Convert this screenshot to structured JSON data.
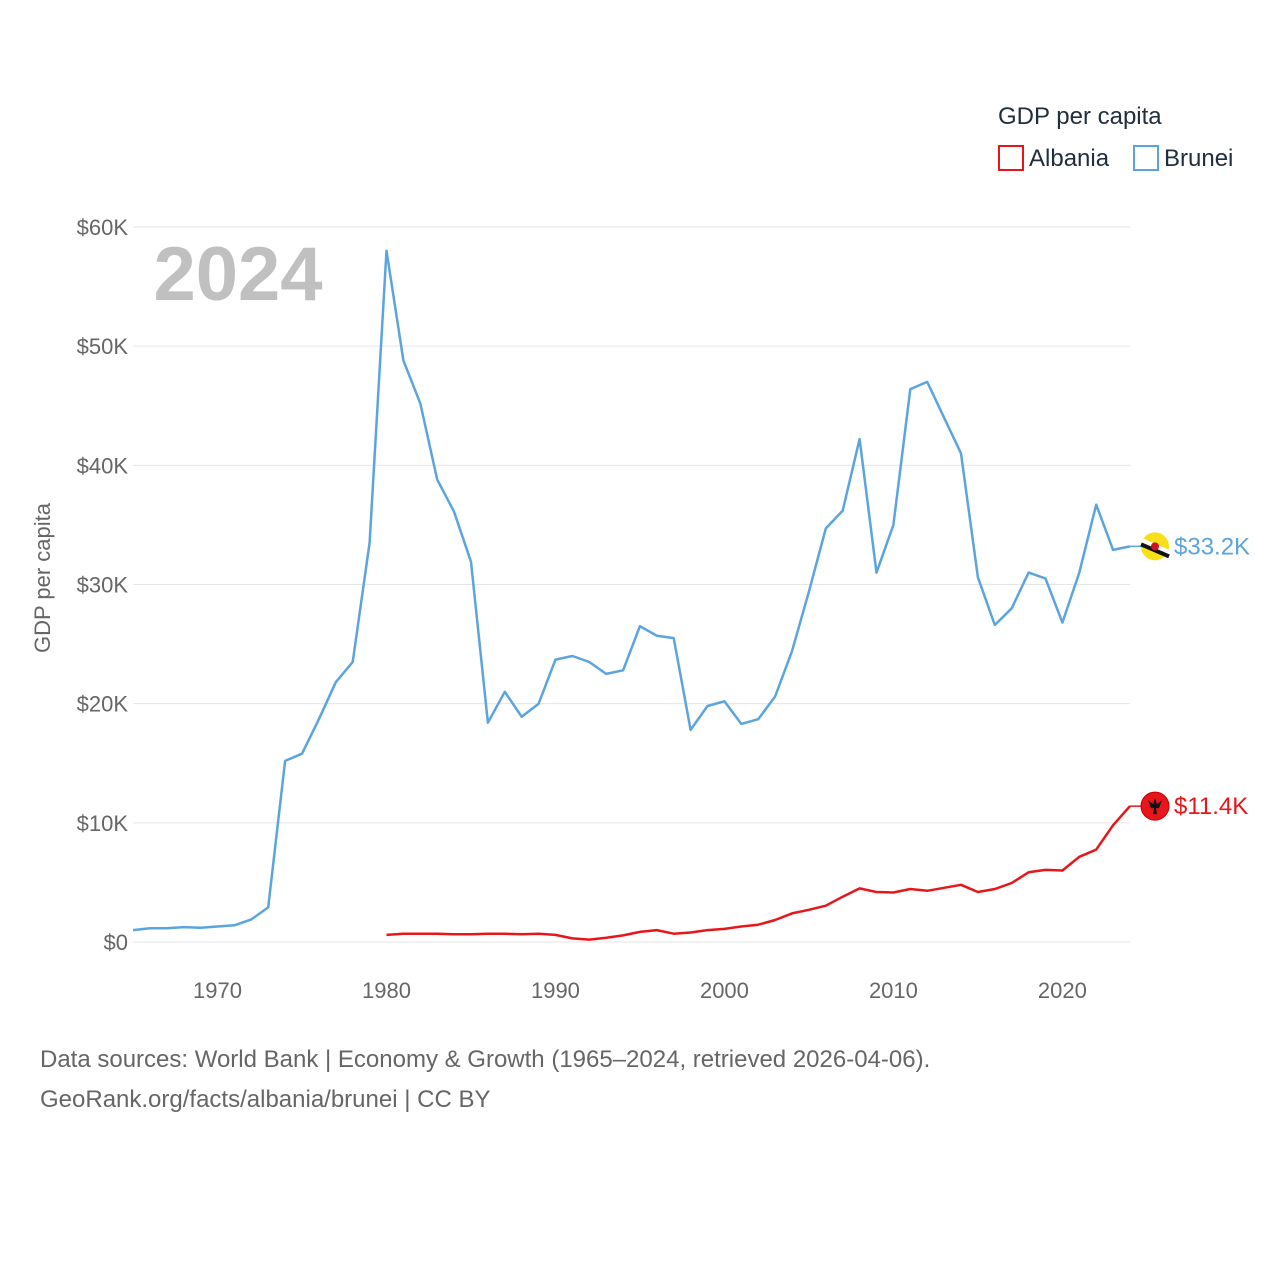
{
  "legend": {
    "title": "GDP per capita"
  },
  "year_display": "2024",
  "source": {
    "line1": "Data sources: World Bank | Economy & Growth (1965–2024, retrieved 2026-04-06).",
    "line2": "GeoRank.org/facts/albania/brunei | CC BY"
  },
  "chart_data": {
    "type": "line",
    "title": "GDP per capita",
    "ylabel": "GDP per capita",
    "xlabel": "",
    "xlim": [
      1965,
      2024
    ],
    "ylim": [
      0,
      60000
    ],
    "grid": true,
    "legend_position": "top-right",
    "x_ticks": [
      1970,
      1980,
      1990,
      2000,
      2010,
      2020
    ],
    "x_tick_labels": [
      "1970",
      "1980",
      "1990",
      "2000",
      "2010",
      "2020"
    ],
    "y_ticks": [
      0,
      10000,
      20000,
      30000,
      40000,
      50000,
      60000
    ],
    "y_tick_labels": [
      "$0",
      "$10K",
      "$20K",
      "$30K",
      "$40K",
      "$50K",
      "$60K"
    ],
    "series": [
      {
        "name": "Albania",
        "color": "#e8161b",
        "end_label": "$11.4K",
        "flag_icon": "albania-flag-icon",
        "x": [
          1980,
          1981,
          1982,
          1983,
          1984,
          1985,
          1986,
          1987,
          1988,
          1989,
          1990,
          1991,
          1992,
          1993,
          1994,
          1995,
          1996,
          1997,
          1998,
          1999,
          2000,
          2001,
          2002,
          2003,
          2004,
          2005,
          2006,
          2007,
          2008,
          2009,
          2010,
          2011,
          2012,
          2013,
          2014,
          2015,
          2016,
          2017,
          2018,
          2019,
          2020,
          2021,
          2022,
          2023,
          2024
        ],
        "values": [
          600,
          700,
          700,
          700,
          650,
          650,
          700,
          700,
          650,
          700,
          600,
          300,
          200,
          350,
          550,
          850,
          1000,
          700,
          800,
          1000,
          1100,
          1300,
          1450,
          1850,
          2400,
          2700,
          3050,
          3800,
          4500,
          4200,
          4150,
          4450,
          4300,
          4550,
          4800,
          4200,
          4450,
          4950,
          5850,
          6050,
          6000,
          7150,
          7750,
          9800,
          11400
        ]
      },
      {
        "name": "Brunei",
        "color": "#5ba4e0",
        "end_label": "$33.2K",
        "flag_icon": "brunei-flag-icon",
        "x": [
          1965,
          1966,
          1967,
          1968,
          1969,
          1970,
          1971,
          1972,
          1973,
          1974,
          1975,
          1976,
          1977,
          1978,
          1979,
          1980,
          1981,
          1982,
          1983,
          1984,
          1985,
          1986,
          1987,
          1988,
          1989,
          1990,
          1991,
          1992,
          1993,
          1994,
          1995,
          1996,
          1997,
          1998,
          1999,
          2000,
          2001,
          2002,
          2003,
          2004,
          2005,
          2006,
          2007,
          2008,
          2009,
          2010,
          2011,
          2012,
          2013,
          2014,
          2015,
          2016,
          2017,
          2018,
          2019,
          2020,
          2021,
          2022,
          2023,
          2024
        ],
        "values": [
          1000,
          1150,
          1150,
          1250,
          1200,
          1300,
          1400,
          1900,
          2900,
          15200,
          15800,
          18700,
          21800,
          23500,
          33500,
          58000,
          48800,
          45200,
          38800,
          36100,
          31900,
          18400,
          21000,
          18900,
          20000,
          23700,
          24000,
          23500,
          22500,
          22800,
          26500,
          25700,
          25500,
          17800,
          19800,
          20200,
          18300,
          18700,
          20600,
          24400,
          29400,
          34700,
          36200,
          42200,
          31000,
          35000,
          46400,
          47000,
          44000,
          41000,
          30600,
          26600,
          28000,
          31000,
          30500,
          26800,
          31000,
          36700,
          32900,
          33200
        ]
      }
    ]
  }
}
